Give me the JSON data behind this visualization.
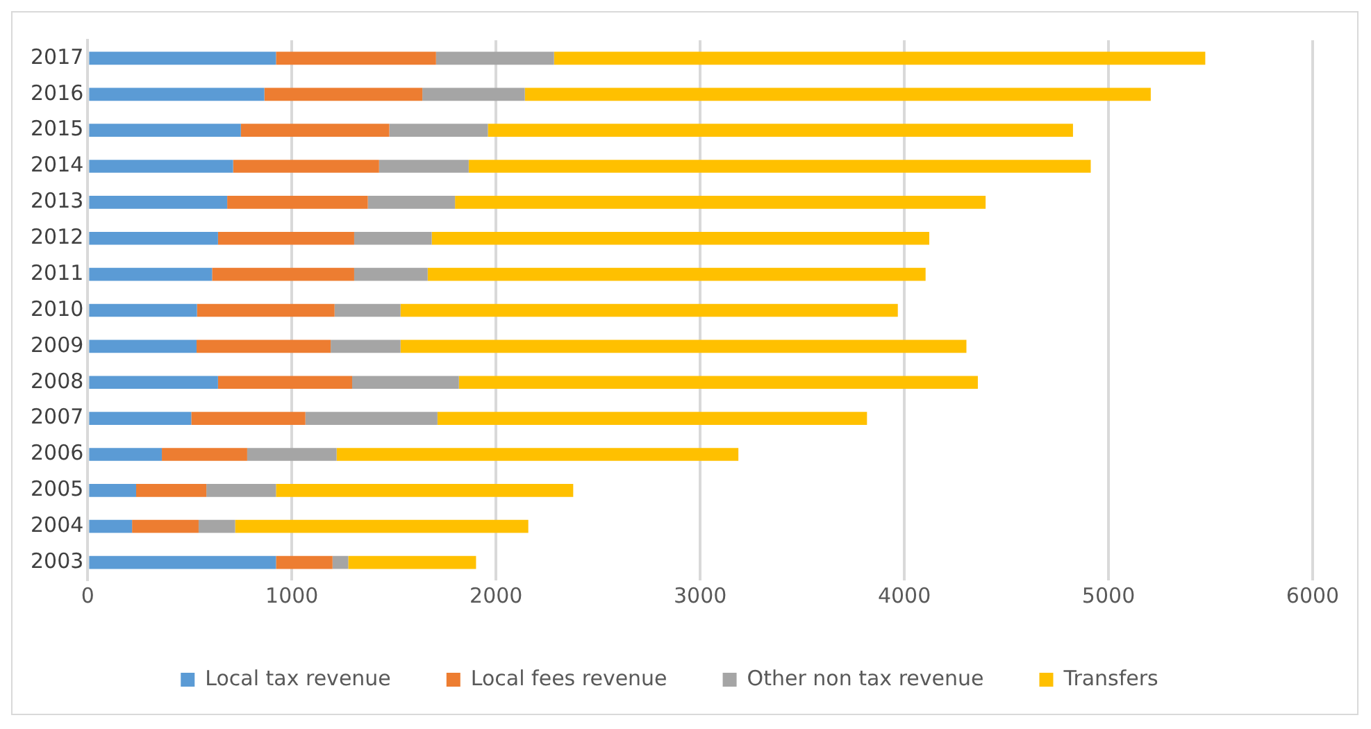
{
  "chart_data": {
    "type": "bar",
    "orientation": "horizontal",
    "stacked": true,
    "categories": [
      "2017",
      "2016",
      "2015",
      "2014",
      "2013",
      "2012",
      "2011",
      "2010",
      "2009",
      "2008",
      "2007",
      "2006",
      "2005",
      "2004",
      "2003"
    ],
    "series": [
      {
        "name": "Local tax revenue",
        "color": "#5b9bd5",
        "values": [
          922,
          865,
          750,
          712,
          683,
          638,
          609,
          535,
          533,
          638,
          507,
          363,
          237,
          217,
          922
        ]
      },
      {
        "name": "Local fees revenue",
        "color": "#ed7d31",
        "values": [
          784,
          774,
          727,
          715,
          689,
          667,
          696,
          674,
          657,
          657,
          559,
          418,
          344,
          326,
          277
        ]
      },
      {
        "name": "Other non tax revenue",
        "color": "#a5a5a5",
        "values": [
          578,
          502,
          483,
          439,
          427,
          380,
          360,
          323,
          342,
          523,
          647,
          438,
          341,
          179,
          77
        ]
      },
      {
        "name": "Transfers",
        "color": "#ffc000",
        "values": [
          3190,
          3066,
          2866,
          3047,
          2599,
          2437,
          2439,
          2436,
          2772,
          2542,
          2104,
          1968,
          1456,
          1436,
          626
        ]
      }
    ],
    "xlim": [
      0,
      6000
    ],
    "xticks": [
      0,
      1000,
      2000,
      3000,
      4000,
      5000,
      6000
    ],
    "grid": "x",
    "legend": "bottom"
  }
}
